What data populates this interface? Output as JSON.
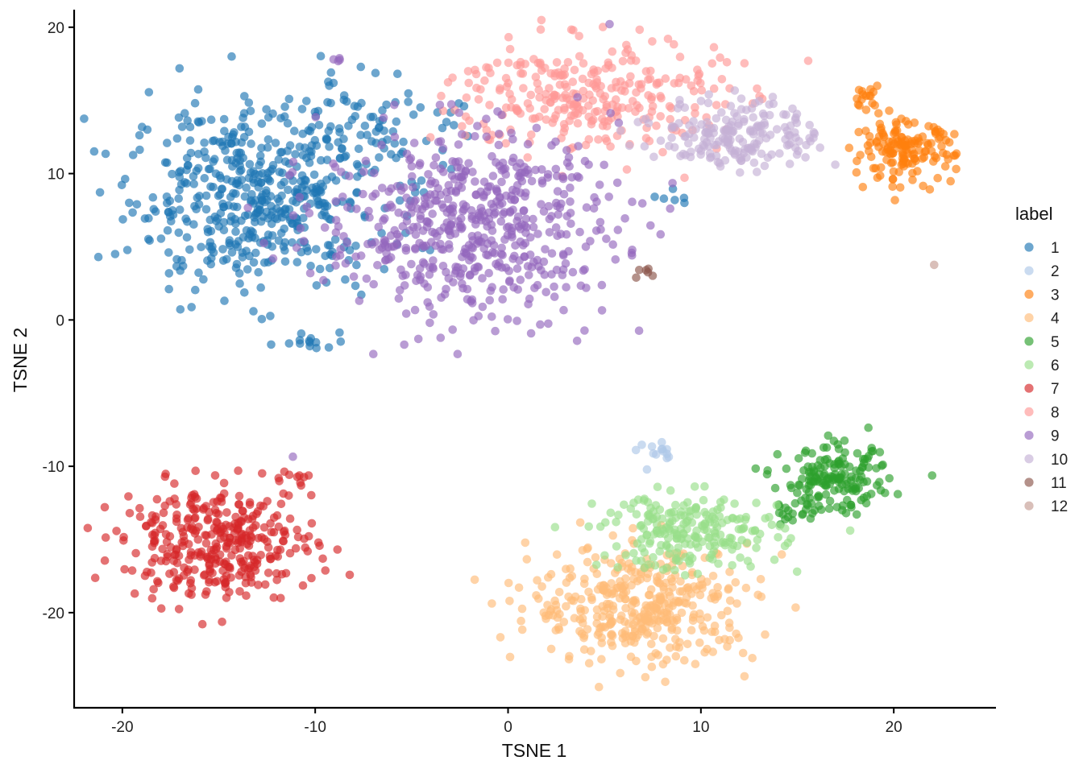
{
  "chart_data": {
    "type": "scatter",
    "title": "",
    "xlabel": "TSNE 1",
    "ylabel": "TSNE 2",
    "xlim": [
      -22.5,
      25.3
    ],
    "ylim": [
      -26.5,
      21.2
    ],
    "x_ticks": [
      -20,
      -10,
      0,
      10,
      20
    ],
    "y_ticks": [
      -20,
      -10,
      0,
      10,
      20
    ],
    "x_tick_labels": [
      "-20",
      "-10",
      "0",
      "10",
      "20"
    ],
    "y_tick_labels": [
      "-20",
      "-10",
      "0",
      "10",
      "20"
    ],
    "grid": false,
    "legend": {
      "title": "label",
      "position": "right"
    },
    "point_alpha": 0.65,
    "series": [
      {
        "name": "1",
        "color": "#1f77b4",
        "clusters": [
          {
            "cx": -13,
            "cy": 8.5,
            "sx": 3.3,
            "sy": 3.2,
            "n": 520
          },
          {
            "cx": -6,
            "cy": 13.5,
            "sx": 2.2,
            "sy": 1.8,
            "n": 60
          },
          {
            "cx": -10.5,
            "cy": -1.5,
            "sx": 1.2,
            "sy": 0.5,
            "n": 14
          },
          {
            "cx": 9,
            "cy": 8.3,
            "sx": 0.6,
            "sy": 0.3,
            "n": 6
          }
        ]
      },
      {
        "name": "2",
        "color": "#aec7e8",
        "clusters": [
          {
            "cx": 7.7,
            "cy": -9.2,
            "sx": 0.5,
            "sy": 0.4,
            "n": 14
          }
        ]
      },
      {
        "name": "3",
        "color": "#ff7f0e",
        "clusters": [
          {
            "cx": 20.5,
            "cy": 11.5,
            "sx": 1.3,
            "sy": 1.0,
            "n": 150
          },
          {
            "cx": 18.5,
            "cy": 15.3,
            "sx": 0.4,
            "sy": 0.4,
            "n": 15
          }
        ]
      },
      {
        "name": "4",
        "color": "#ffbb78",
        "clusters": [
          {
            "cx": 7,
            "cy": -19.5,
            "sx": 2.9,
            "sy": 2.0,
            "n": 400
          }
        ]
      },
      {
        "name": "5",
        "color": "#2ca02c",
        "clusters": [
          {
            "cx": 17,
            "cy": -11,
            "sx": 1.4,
            "sy": 1.1,
            "n": 160
          },
          {
            "cx": 15,
            "cy": -13,
            "sx": 0.8,
            "sy": 0.7,
            "n": 20
          }
        ]
      },
      {
        "name": "6",
        "color": "#98df8a",
        "clusters": [
          {
            "cx": 9.5,
            "cy": -14.5,
            "sx": 2.3,
            "sy": 1.3,
            "n": 220
          }
        ]
      },
      {
        "name": "7",
        "color": "#d62728",
        "clusters": [
          {
            "cx": -15,
            "cy": -15.2,
            "sx": 2.5,
            "sy": 1.9,
            "n": 350
          },
          {
            "cx": -11,
            "cy": -10.7,
            "sx": 0.7,
            "sy": 0.3,
            "n": 8
          }
        ]
      },
      {
        "name": "8",
        "color": "#ff9896",
        "clusters": [
          {
            "cx": 4,
            "cy": 15.3,
            "sx": 3.5,
            "sy": 2.0,
            "n": 300
          }
        ]
      },
      {
        "name": "9",
        "color": "#9467bd",
        "clusters": [
          {
            "cx": -2,
            "cy": 6.5,
            "sx": 3.8,
            "sy": 3.2,
            "n": 580
          },
          {
            "cx": -8.5,
            "cy": 17.8,
            "sx": 0.4,
            "sy": 0.2,
            "n": 4
          },
          {
            "cx": -11,
            "cy": -9.5,
            "sx": 0.1,
            "sy": 0.1,
            "n": 1
          }
        ]
      },
      {
        "name": "10",
        "color": "#c5b0d5",
        "clusters": [
          {
            "cx": 12,
            "cy": 12.7,
            "sx": 2.1,
            "sy": 1.2,
            "n": 190
          }
        ]
      },
      {
        "name": "11",
        "color": "#8c564b",
        "clusters": [
          {
            "cx": 7.3,
            "cy": 3.4,
            "sx": 0.3,
            "sy": 0.3,
            "n": 6
          }
        ]
      },
      {
        "name": "12",
        "color": "#c49c94",
        "clusters": [
          {
            "cx": 22,
            "cy": 3.7,
            "sx": 0.05,
            "sy": 0.05,
            "n": 1
          }
        ]
      }
    ]
  }
}
